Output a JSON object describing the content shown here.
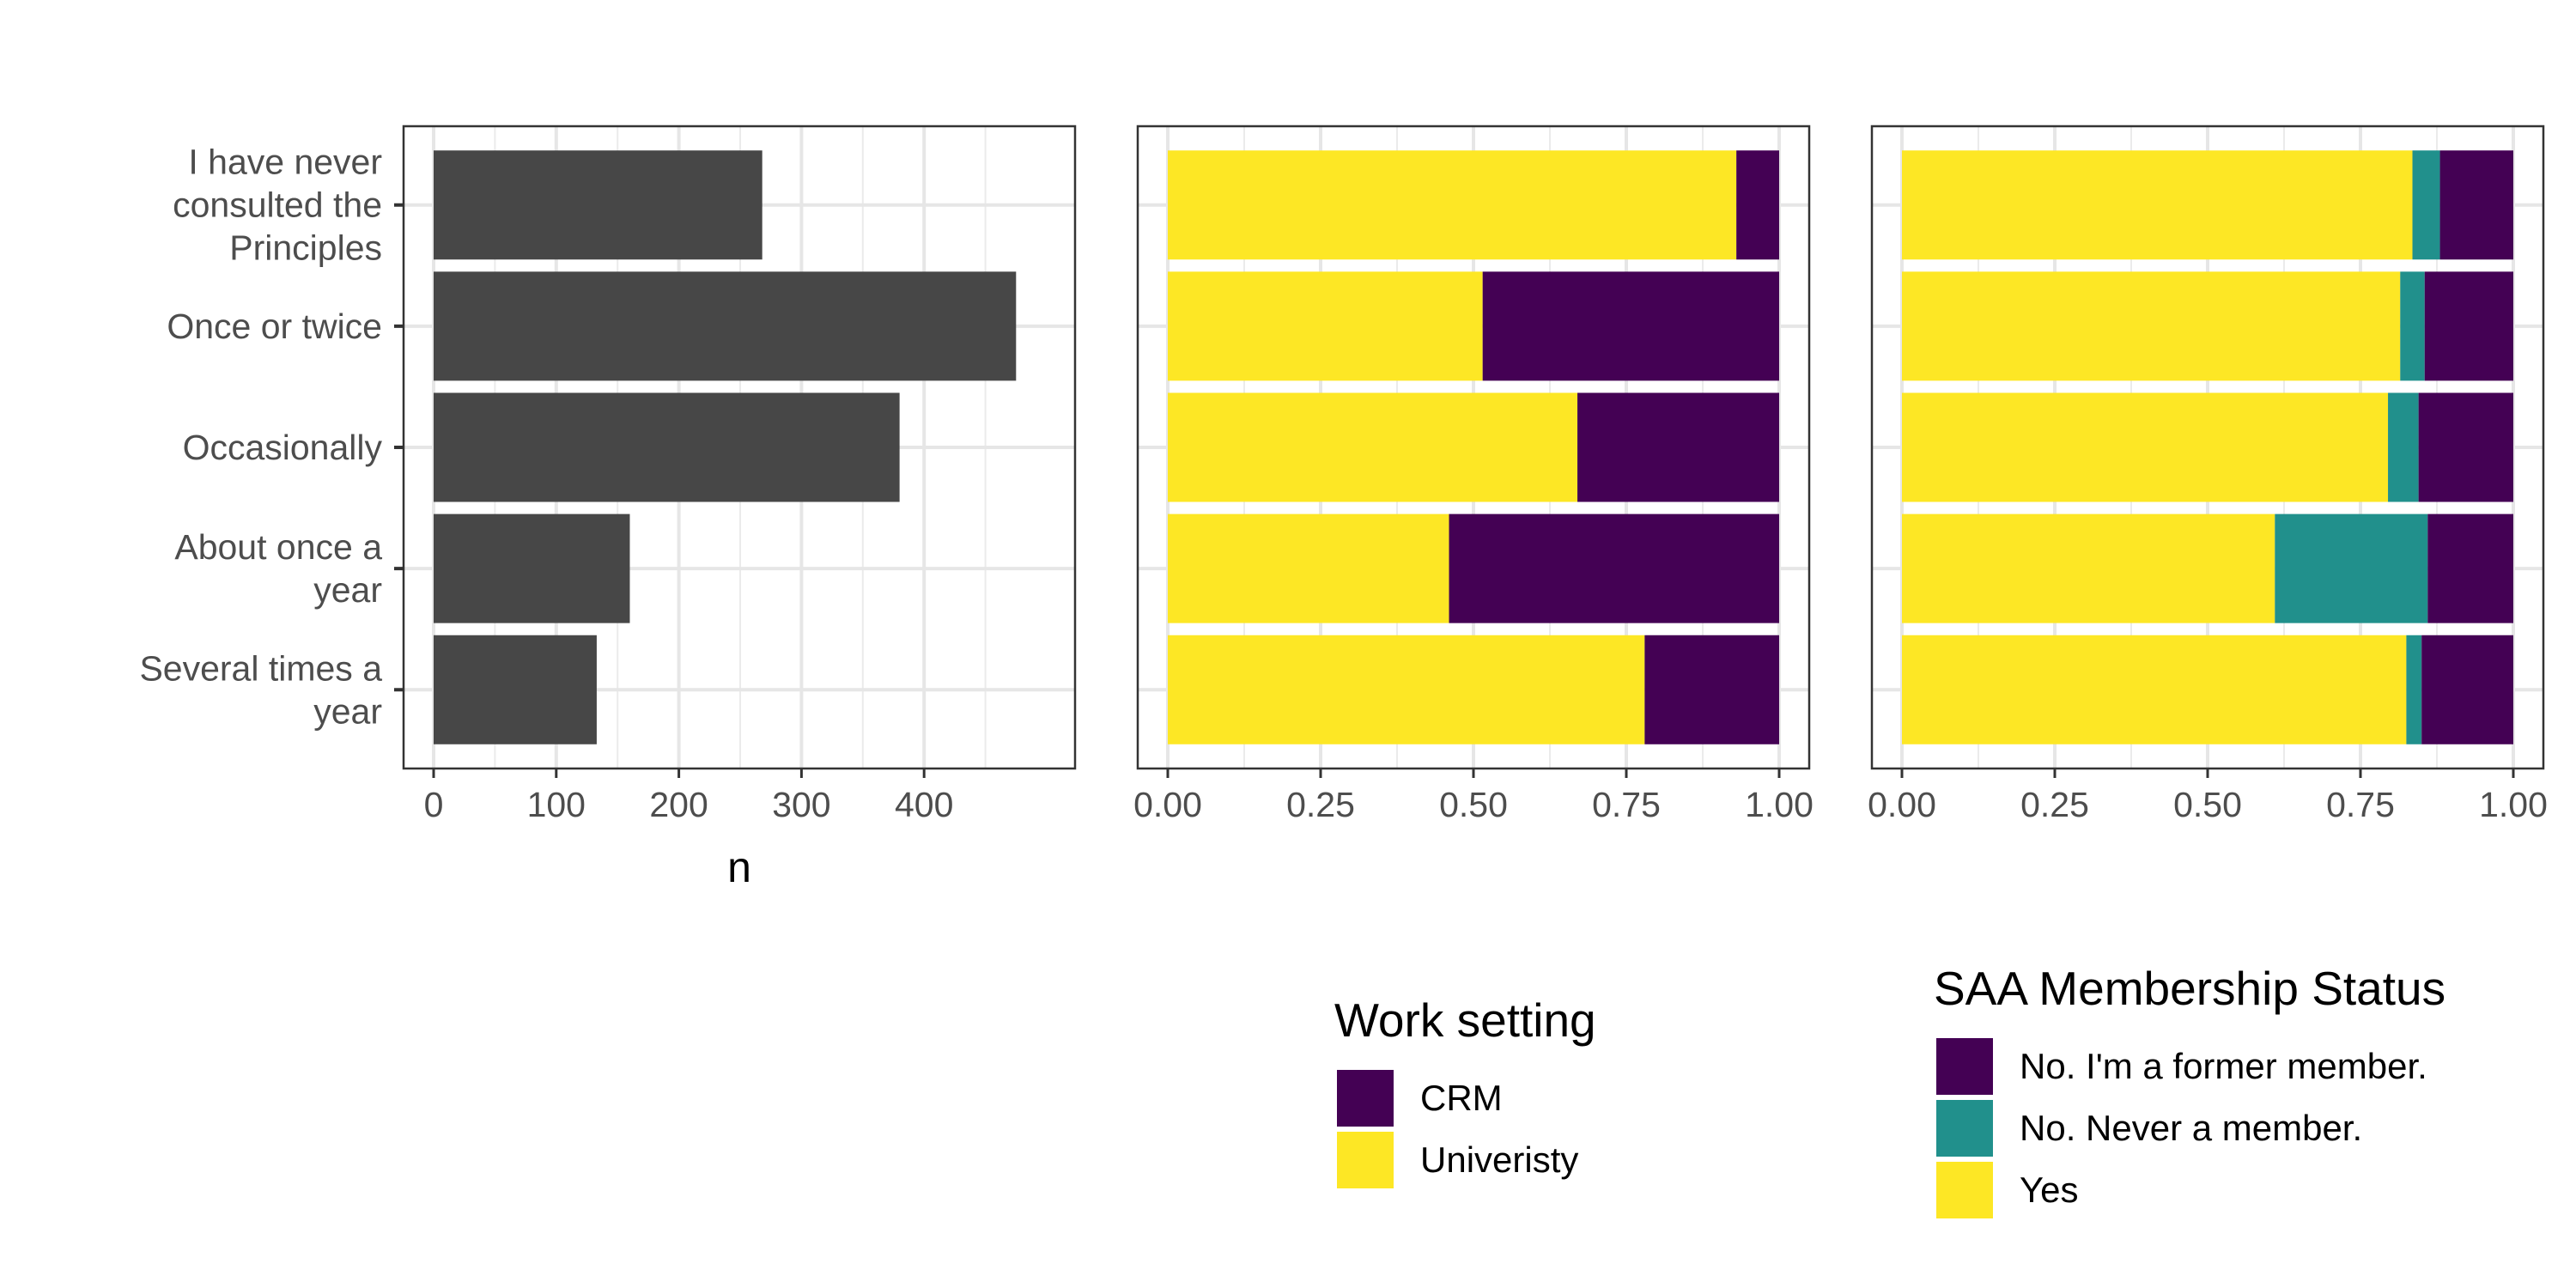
{
  "chart_data": [
    {
      "type": "bar",
      "orientation": "horizontal",
      "categories": [
        "I have never consulted the Principles",
        "Once or twice",
        "Occasionally",
        "About once a year",
        "Several times a year"
      ],
      "category_label_lines": [
        [
          "I have never",
          "consulted the",
          "Principles"
        ],
        [
          "Once or twice"
        ],
        [
          "Occasionally"
        ],
        [
          "About once a",
          "year"
        ],
        [
          "Several times a",
          "year"
        ]
      ],
      "values": [
        268,
        475,
        380,
        160,
        133
      ],
      "xlabel": "n",
      "xlim": [
        0,
        500
      ],
      "xticks": [
        "0",
        "100",
        "200",
        "300",
        "400"
      ],
      "bar_color": "#474747",
      "grid": true
    },
    {
      "type": "bar",
      "orientation": "horizontal",
      "stacked": true,
      "categories": [
        "I have never consulted the Principles",
        "Once or twice",
        "Occasionally",
        "About once a year",
        "Several times a year"
      ],
      "xlim": [
        0,
        1
      ],
      "xticks": [
        "0.00",
        "0.25",
        "0.50",
        "0.75",
        "1.00"
      ],
      "legend_title": "Work setting",
      "series": [
        {
          "name": "Univeristy",
          "color": "#fde725",
          "values": [
            0.93,
            0.515,
            0.67,
            0.46,
            0.78
          ]
        },
        {
          "name": "CRM",
          "color": "#440154",
          "values": [
            0.07,
            0.485,
            0.33,
            0.54,
            0.22
          ]
        }
      ],
      "legend_order": [
        "CRM",
        "Univeristy"
      ],
      "grid": true
    },
    {
      "type": "bar",
      "orientation": "horizontal",
      "stacked": true,
      "categories": [
        "I have never consulted the Principles",
        "Once or twice",
        "Occasionally",
        "About once a year",
        "Several times a year"
      ],
      "xlim": [
        0,
        1
      ],
      "xticks": [
        "0.00",
        "0.25",
        "0.50",
        "0.75",
        "1.00"
      ],
      "legend_title": "SAA Membership Status",
      "series": [
        {
          "name": "Yes",
          "color": "#fde725",
          "values": [
            0.835,
            0.815,
            0.795,
            0.61,
            0.825
          ]
        },
        {
          "name": "No. Never a member.",
          "color": "#21908c",
          "values": [
            0.045,
            0.04,
            0.05,
            0.25,
            0.025
          ]
        },
        {
          "name": "No. I'm a former member.",
          "color": "#440154",
          "values": [
            0.12,
            0.145,
            0.155,
            0.14,
            0.15
          ]
        }
      ],
      "legend_order": [
        "No. I'm a former member.",
        "No. Never a member.",
        "Yes"
      ],
      "grid": true
    }
  ]
}
